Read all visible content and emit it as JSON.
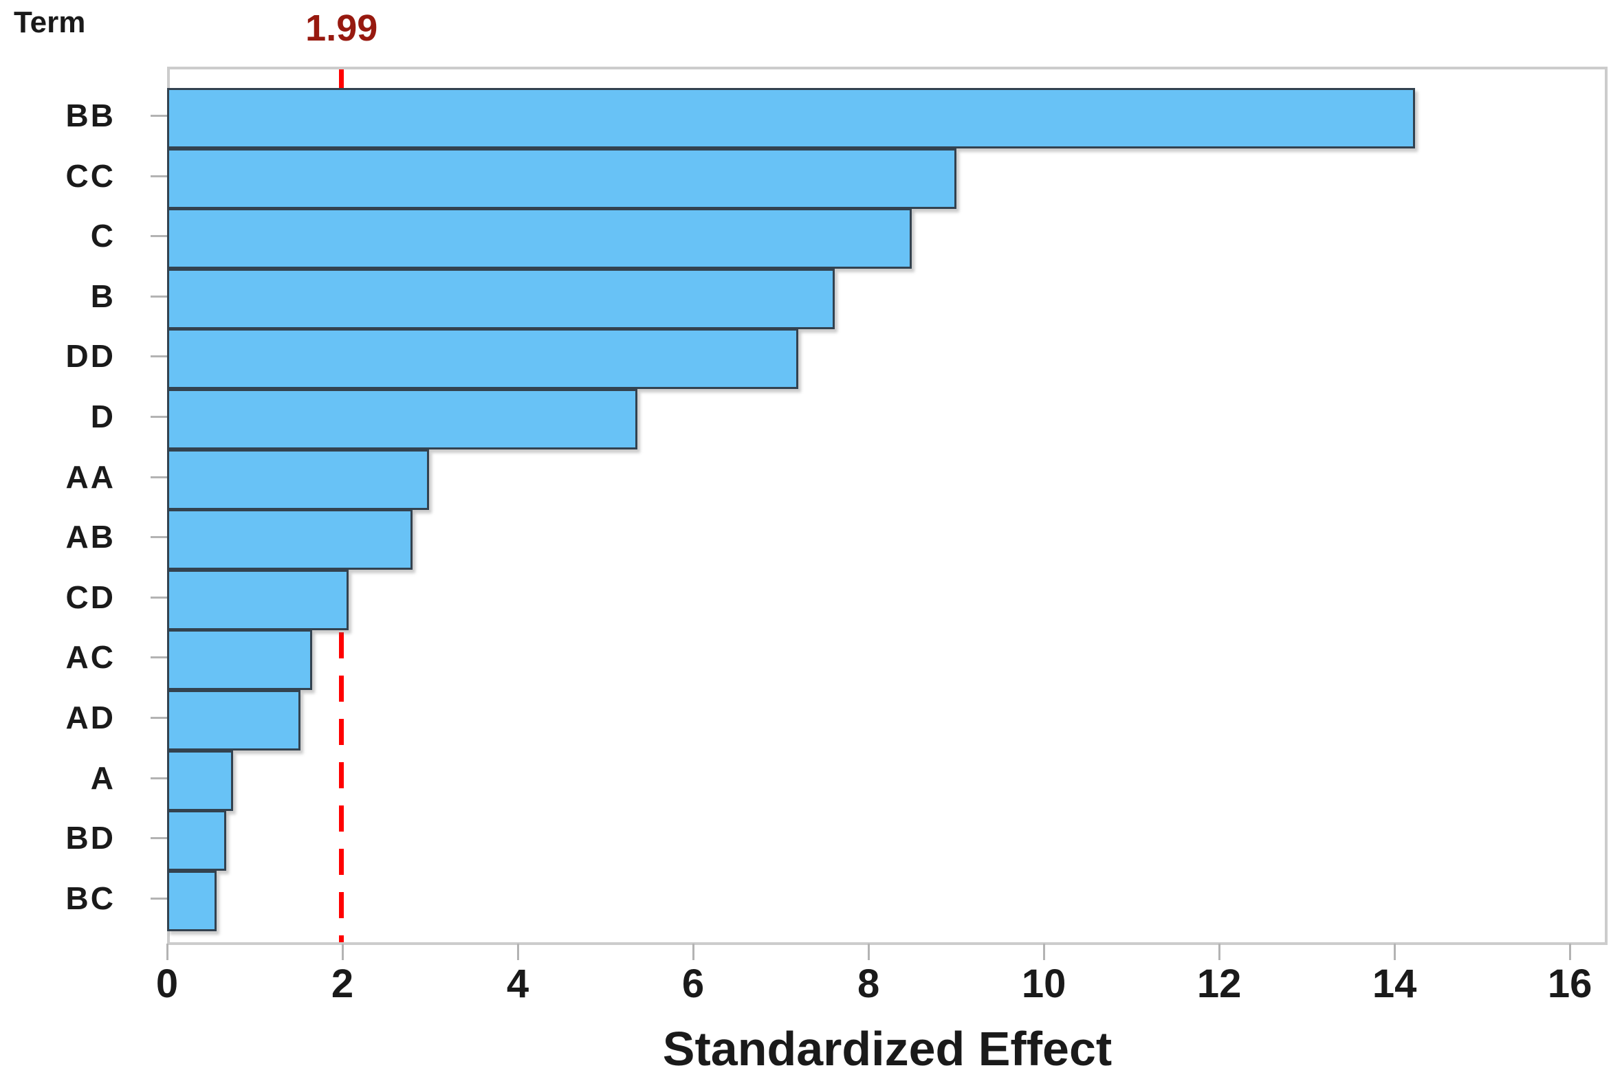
{
  "chart_data": {
    "type": "bar",
    "orientation": "horizontal",
    "title": "",
    "xlabel": "Standardized Effect",
    "ylabel": "Term",
    "categories": [
      "BB",
      "CC",
      "C",
      "B",
      "DD",
      "D",
      "AA",
      "AB",
      "CD",
      "AC",
      "AD",
      "A",
      "BD",
      "BC"
    ],
    "values": [
      14.2,
      8.97,
      8.46,
      7.58,
      7.17,
      5.33,
      2.96,
      2.77,
      2.04,
      1.62,
      1.49,
      0.72,
      0.64,
      0.53
    ],
    "xlim": [
      0,
      16.43
    ],
    "xticks": [
      0,
      2,
      4,
      6,
      8,
      10,
      12,
      14,
      16
    ],
    "grid": "off",
    "legend": "none",
    "reference_line": {
      "value": 1.99,
      "label": "1.99",
      "style": "dashed"
    },
    "colors": {
      "bar_fill": "#68c2f6",
      "bar_border": "#33424f",
      "reference_line": "#ff0000",
      "reference_label": "#97190f",
      "axis_line": "#cccccc",
      "tick": "#b3b3b3",
      "text": "#1a1a1a"
    }
  }
}
